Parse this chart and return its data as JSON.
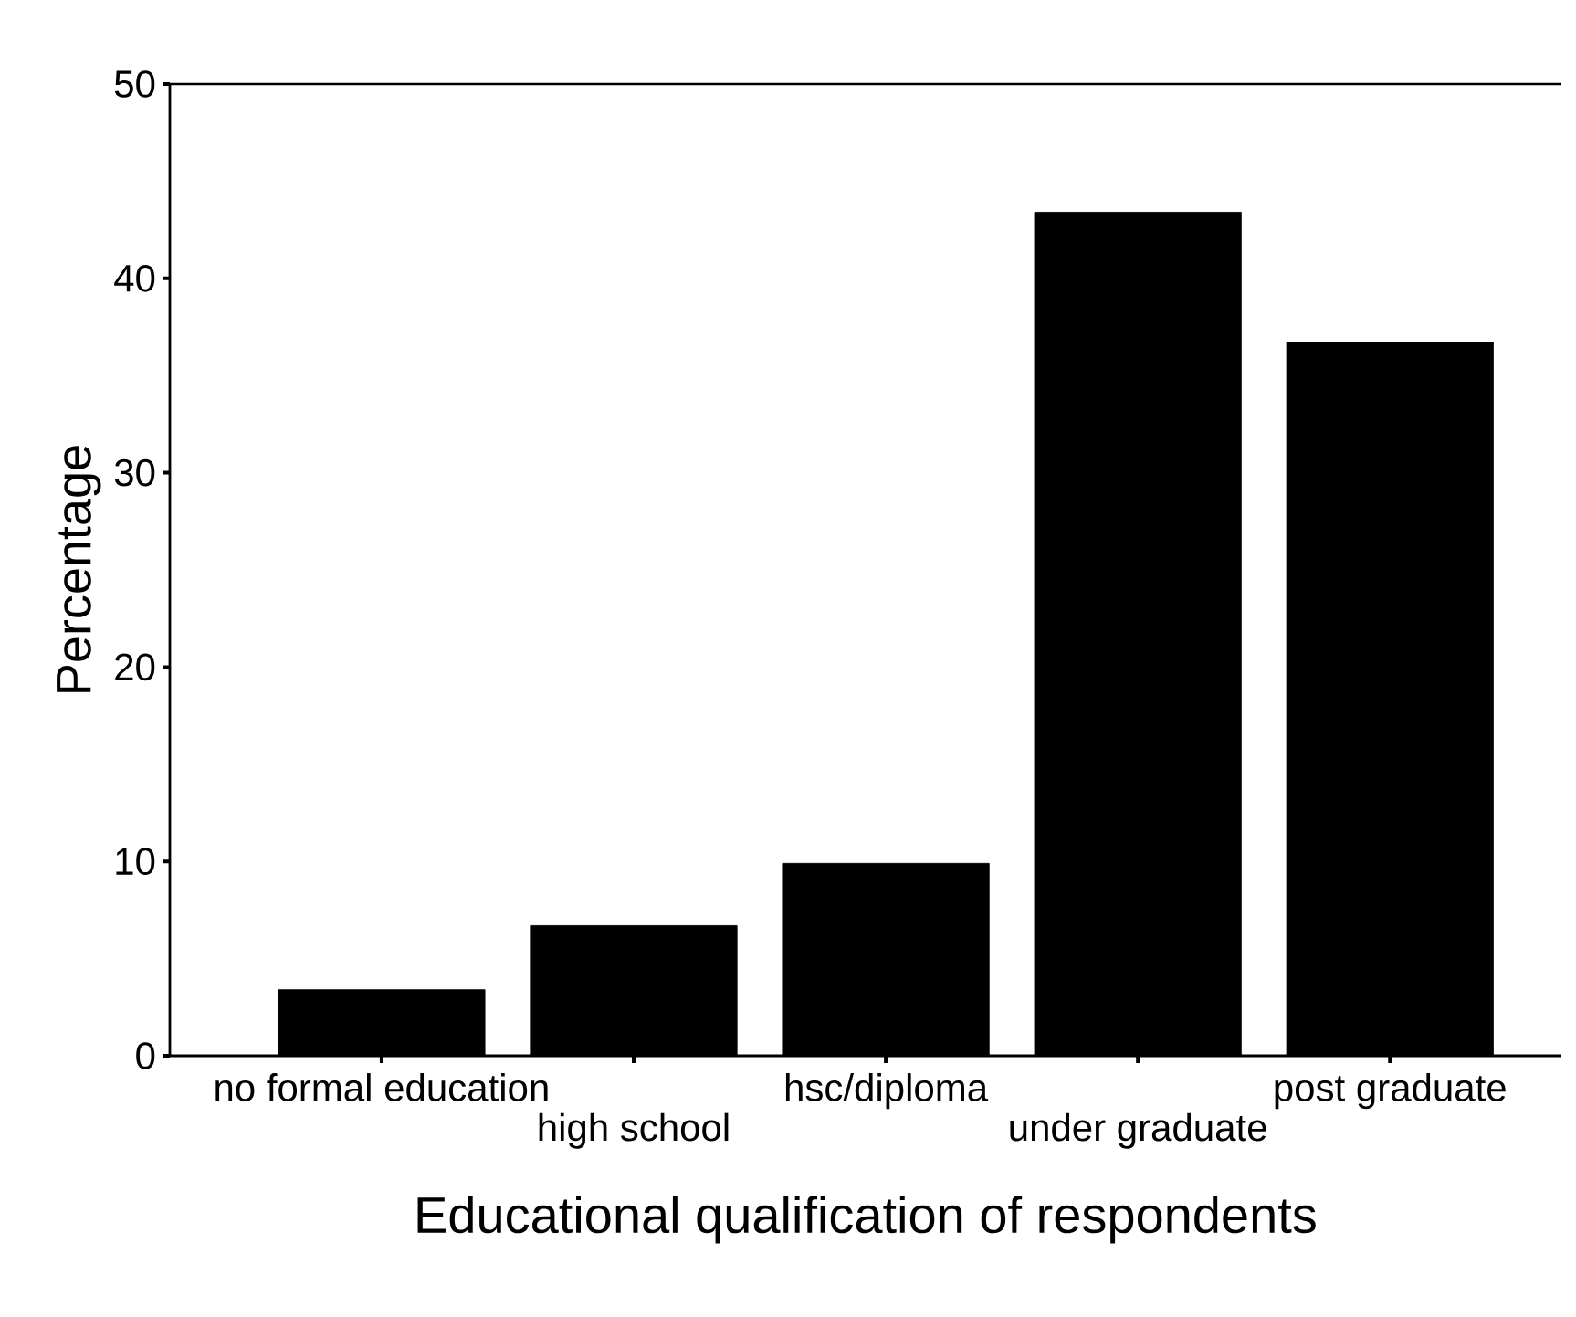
{
  "chart_data": {
    "type": "bar",
    "xlabel": "Educational qualification of respondents",
    "ylabel": "Percentage",
    "categories": [
      "no formal education",
      "high school",
      "hsc/diploma",
      "under graduate",
      "post graduate"
    ],
    "values": [
      3.4,
      6.7,
      9.9,
      43.4,
      36.7
    ],
    "color": "#000000",
    "ylim": [
      0,
      50
    ],
    "yticks": [
      0,
      10,
      20,
      30,
      40,
      50
    ],
    "grid": false
  }
}
